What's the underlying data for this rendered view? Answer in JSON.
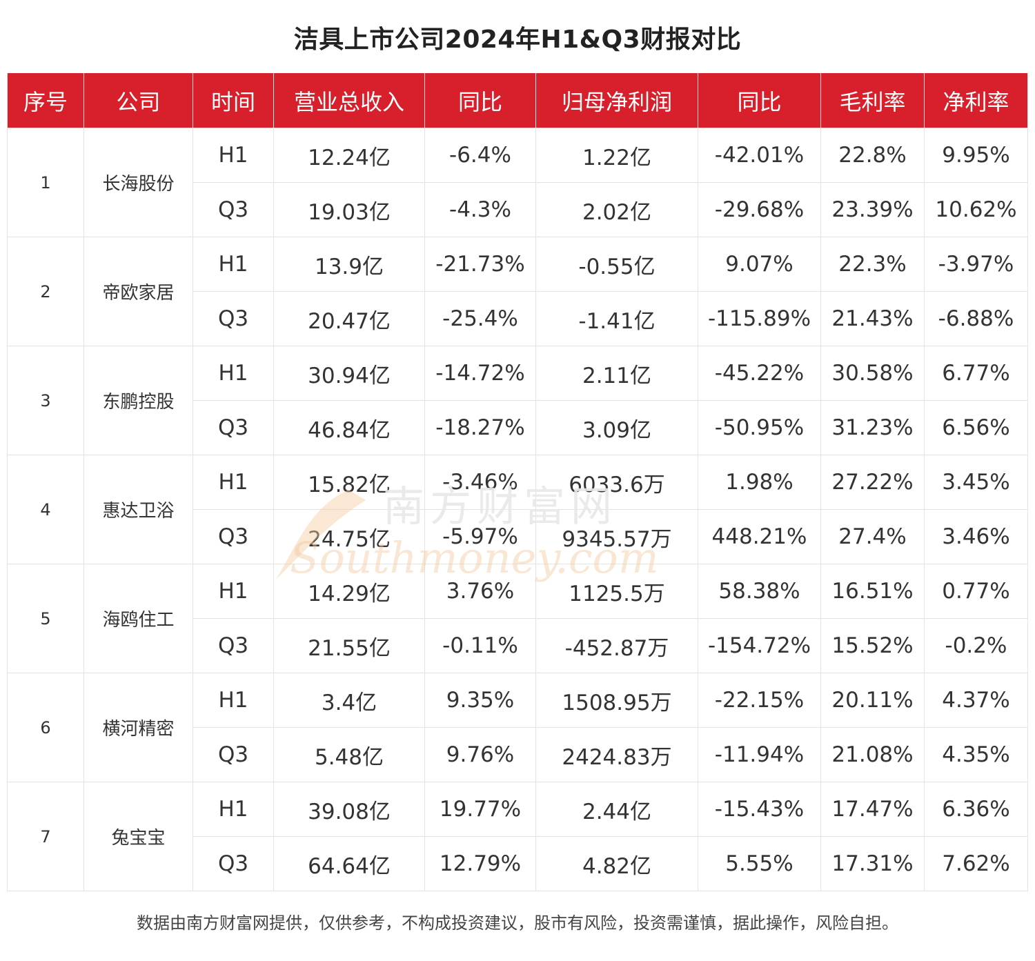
{
  "title": "洁具上市公司2024年H1&Q3财报对比",
  "headers": [
    "序号",
    "公司",
    "时间",
    "营业总收入",
    "同比",
    "归母净利润",
    "同比",
    "毛利率",
    "净利率"
  ],
  "companies": [
    {
      "seq": "1",
      "name": "长海股份",
      "rows": [
        {
          "period": "H1",
          "revenue": "12.24亿",
          "revenue_yoy": "-6.4%",
          "net_profit": "1.22亿",
          "profit_yoy": "-42.01%",
          "gross_margin": "22.8%",
          "net_margin": "9.95%"
        },
        {
          "period": "Q3",
          "revenue": "19.03亿",
          "revenue_yoy": "-4.3%",
          "net_profit": "2.02亿",
          "profit_yoy": "-29.68%",
          "gross_margin": "23.39%",
          "net_margin": "10.62%"
        }
      ]
    },
    {
      "seq": "2",
      "name": "帝欧家居",
      "rows": [
        {
          "period": "H1",
          "revenue": "13.9亿",
          "revenue_yoy": "-21.73%",
          "net_profit": "-0.55亿",
          "profit_yoy": "9.07%",
          "gross_margin": "22.3%",
          "net_margin": "-3.97%"
        },
        {
          "period": "Q3",
          "revenue": "20.47亿",
          "revenue_yoy": "-25.4%",
          "net_profit": "-1.41亿",
          "profit_yoy": "-115.89%",
          "gross_margin": "21.43%",
          "net_margin": "-6.88%"
        }
      ]
    },
    {
      "seq": "3",
      "name": "东鹏控股",
      "rows": [
        {
          "period": "H1",
          "revenue": "30.94亿",
          "revenue_yoy": "-14.72%",
          "net_profit": "2.11亿",
          "profit_yoy": "-45.22%",
          "gross_margin": "30.58%",
          "net_margin": "6.77%"
        },
        {
          "period": "Q3",
          "revenue": "46.84亿",
          "revenue_yoy": "-18.27%",
          "net_profit": "3.09亿",
          "profit_yoy": "-50.95%",
          "gross_margin": "31.23%",
          "net_margin": "6.56%"
        }
      ]
    },
    {
      "seq": "4",
      "name": "惠达卫浴",
      "rows": [
        {
          "period": "H1",
          "revenue": "15.82亿",
          "revenue_yoy": "-3.46%",
          "net_profit": "6033.6万",
          "profit_yoy": "1.98%",
          "gross_margin": "27.22%",
          "net_margin": "3.45%"
        },
        {
          "period": "Q3",
          "revenue": "24.75亿",
          "revenue_yoy": "-5.97%",
          "net_profit": "9345.57万",
          "profit_yoy": "448.21%",
          "gross_margin": "27.4%",
          "net_margin": "3.46%"
        }
      ]
    },
    {
      "seq": "5",
      "name": "海鸥住工",
      "rows": [
        {
          "period": "H1",
          "revenue": "14.29亿",
          "revenue_yoy": "3.76%",
          "net_profit": "1125.5万",
          "profit_yoy": "58.38%",
          "gross_margin": "16.51%",
          "net_margin": "0.77%"
        },
        {
          "period": "Q3",
          "revenue": "21.55亿",
          "revenue_yoy": "-0.11%",
          "net_profit": "-452.87万",
          "profit_yoy": "-154.72%",
          "gross_margin": "15.52%",
          "net_margin": "-0.2%"
        }
      ]
    },
    {
      "seq": "6",
      "name": "横河精密",
      "rows": [
        {
          "period": "H1",
          "revenue": "3.4亿",
          "revenue_yoy": "9.35%",
          "net_profit": "1508.95万",
          "profit_yoy": "-22.15%",
          "gross_margin": "20.11%",
          "net_margin": "4.37%"
        },
        {
          "period": "Q3",
          "revenue": "5.48亿",
          "revenue_yoy": "9.76%",
          "net_profit": "2424.83万",
          "profit_yoy": "-11.94%",
          "gross_margin": "21.08%",
          "net_margin": "4.35%"
        }
      ]
    },
    {
      "seq": "7",
      "name": "兔宝宝",
      "rows": [
        {
          "period": "H1",
          "revenue": "39.08亿",
          "revenue_yoy": "19.77%",
          "net_profit": "2.44亿",
          "profit_yoy": "-15.43%",
          "gross_margin": "17.47%",
          "net_margin": "6.36%"
        },
        {
          "period": "Q3",
          "revenue": "64.64亿",
          "revenue_yoy": "12.79%",
          "net_profit": "4.82亿",
          "profit_yoy": "5.55%",
          "gross_margin": "17.31%",
          "net_margin": "7.62%"
        }
      ]
    }
  ],
  "watermark": {
    "cn": "南方财富网",
    "en": "Southmoney.com"
  },
  "footer": "数据由南方财富网提供，仅供参考，不构成投资建议，股市有风险，投资需谨慎，据此操作，风险自担。",
  "colors": {
    "header_bg": "#d7202b",
    "header_text": "#ffffff",
    "grid": "#e3e3e3",
    "watermark": "#f3c9a0"
  }
}
